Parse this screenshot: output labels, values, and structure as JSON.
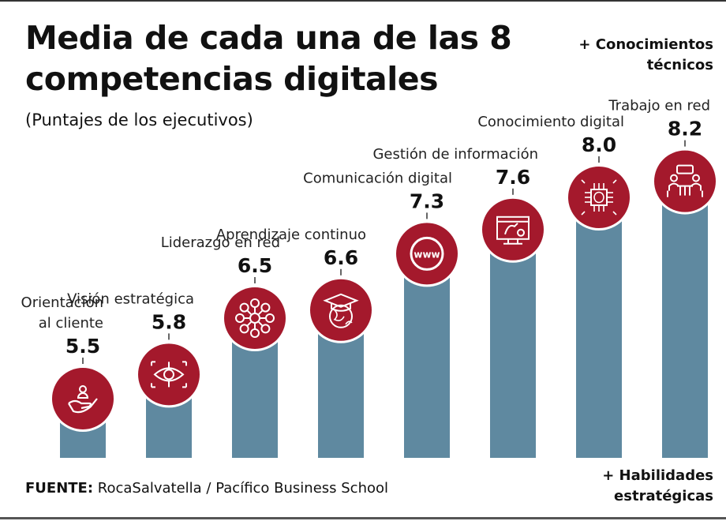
{
  "title_line1": "Media de cada una de las 8",
  "title_line2": "competencias digitales",
  "subtitle": "(Puntajes de los ejecutivos)",
  "top_note_line1": "+ Conocimientos",
  "top_note_line2": "técnicos",
  "bottom_note_line1": "+ Habilidades",
  "bottom_note_line2": "estratégicas",
  "source_label": "FUENTE:",
  "source_text": " RocaSalvatella / Pacífico Business School",
  "colors": {
    "bar": "#5f89a0",
    "icon_circle": "#a4192c",
    "text": "#111111"
  },
  "chart_data": {
    "type": "bar",
    "title": "Media de cada una de las 8 competencias digitales",
    "subtitle": "(Puntajes de los ejecutivos)",
    "xlabel": "",
    "ylabel": "",
    "grid": false,
    "categories": [
      [
        "Orientación",
        "al cliente"
      ],
      [
        "Visión estratégica"
      ],
      [
        "Liderazgo en red"
      ],
      [
        "Aprendizaje continuo"
      ],
      [
        "Comunicación digital"
      ],
      [
        "Gestión de información"
      ],
      [
        "Conocimiento digital"
      ],
      [
        "Trabajo en red"
      ]
    ],
    "values": [
      5.5,
      5.8,
      6.5,
      6.6,
      7.3,
      7.6,
      8.0,
      8.2
    ],
    "value_labels": [
      "5.5",
      "5.8",
      "6.5",
      "6.6",
      "7.3",
      "7.6",
      "8.0",
      "8.2"
    ],
    "icons": [
      "hand-person-icon",
      "eye-target-icon",
      "network-icon",
      "graduation-globe-icon",
      "www-icon",
      "data-screen-icon",
      "brain-chip-icon",
      "meeting-icon"
    ]
  }
}
